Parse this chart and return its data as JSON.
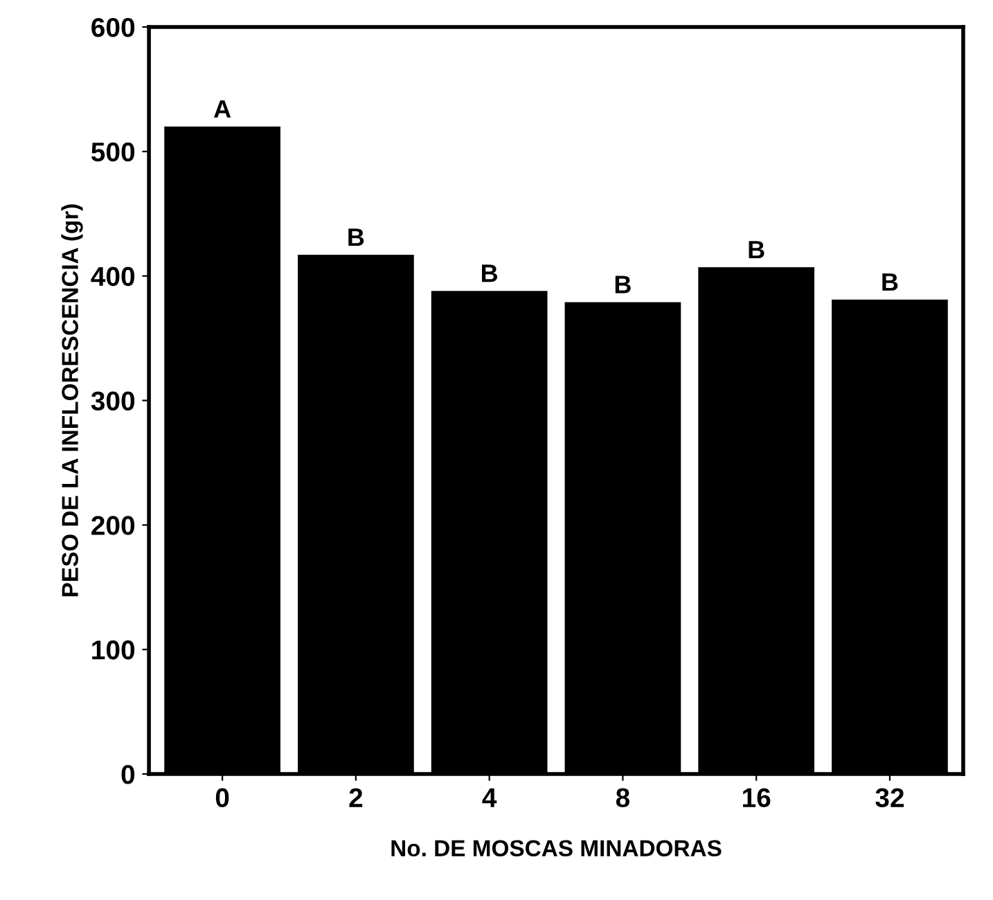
{
  "chart_data": {
    "type": "bar",
    "xlabel": "No. DE MOSCAS MINADORAS",
    "ylabel": "PESO DE LA INFLORESCENCIA (gr)",
    "categories": [
      "0",
      "2",
      "4",
      "8",
      "16",
      "32"
    ],
    "values": [
      520,
      417,
      388,
      379,
      407,
      381
    ],
    "color": "#000000",
    "ylim": [
      0,
      600
    ],
    "yticks": [
      0,
      100,
      200,
      300,
      400,
      500,
      600
    ],
    "annotations": [
      {
        "text": "A",
        "x": "0",
        "y": 520
      },
      {
        "text": "B",
        "x": "2",
        "y": 417
      },
      {
        "text": "B",
        "x": "4",
        "y": 388
      },
      {
        "text": "B",
        "x": "8",
        "y": 379
      },
      {
        "text": "B",
        "x": "16",
        "y": 407
      },
      {
        "text": "B",
        "x": "32",
        "y": 381
      }
    ]
  }
}
